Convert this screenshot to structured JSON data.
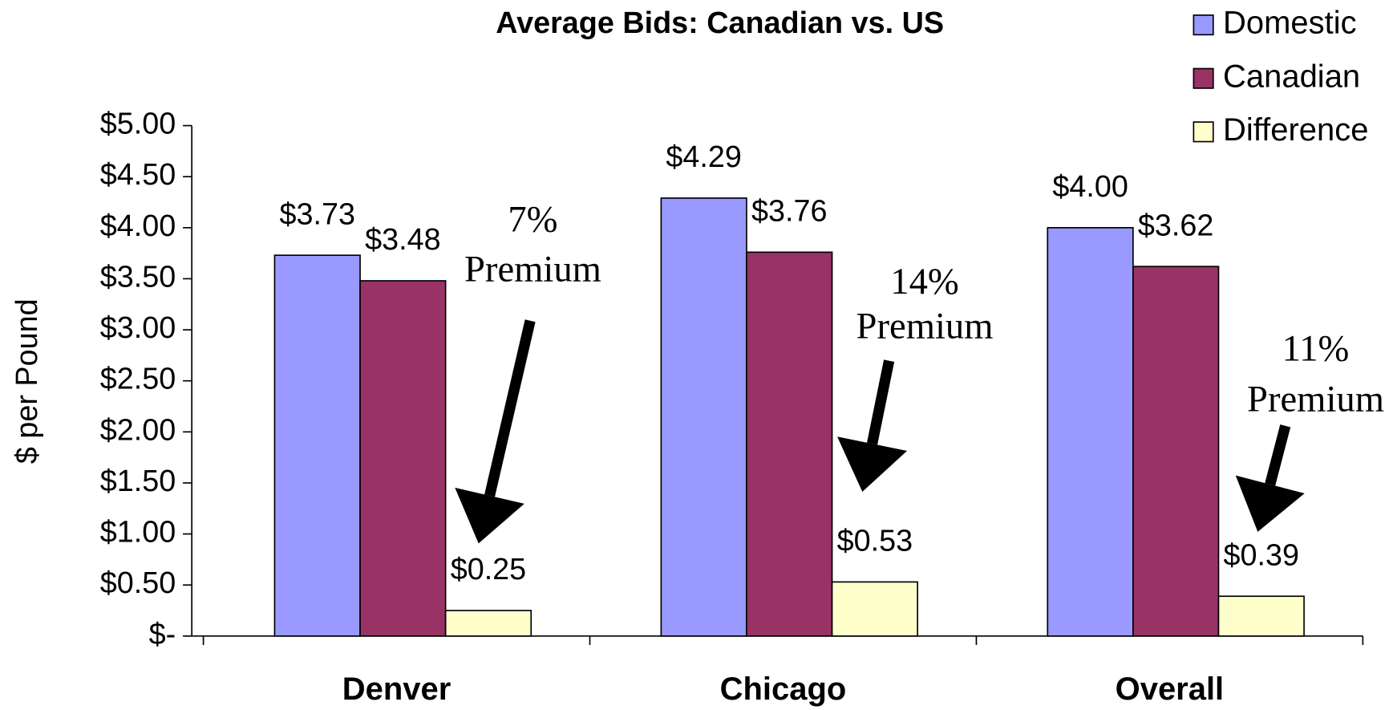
{
  "chart_data": {
    "type": "bar",
    "title": "Average Bids: Canadian vs. US",
    "y_label": "$ per Pound",
    "categories": [
      "Denver",
      "Chicago",
      "Overall"
    ],
    "series": [
      {
        "name": "Domestic",
        "color": "#9999ff",
        "values": [
          3.73,
          4.29,
          4.0
        ],
        "value_labels": [
          "$3.73",
          "$4.29",
          "$4.00"
        ]
      },
      {
        "name": "Canadian",
        "color": "#993366",
        "values": [
          3.48,
          3.76,
          3.62
        ],
        "value_labels": [
          "$3.48",
          "$3.76",
          "$3.62"
        ]
      },
      {
        "name": "Difference",
        "color": "#ffffcc",
        "values": [
          0.25,
          0.53,
          0.39
        ],
        "value_labels": [
          "$0.25",
          "$0.53",
          "$0.39"
        ]
      }
    ],
    "ylim": [
      0,
      5
    ],
    "yticks": [
      {
        "value": 0,
        "label": "$-"
      },
      {
        "value": 0.5,
        "label": "$0.50"
      },
      {
        "value": 1,
        "label": "$1.00"
      },
      {
        "value": 1.5,
        "label": "$1.50"
      },
      {
        "value": 2,
        "label": "$2.00"
      },
      {
        "value": 2.5,
        "label": "$2.50"
      },
      {
        "value": 3,
        "label": "$3.00"
      },
      {
        "value": 3.5,
        "label": "$3.50"
      },
      {
        "value": 4,
        "label": "$4.00"
      },
      {
        "value": 4.5,
        "label": "$4.50"
      },
      {
        "value": 5,
        "label": "$5.00"
      }
    ],
    "annotations": [
      [
        "7%",
        "Premium"
      ],
      [
        "14%",
        "Premium"
      ],
      [
        "11%",
        "Premium"
      ]
    ],
    "legend": "top-right",
    "grid": false
  }
}
